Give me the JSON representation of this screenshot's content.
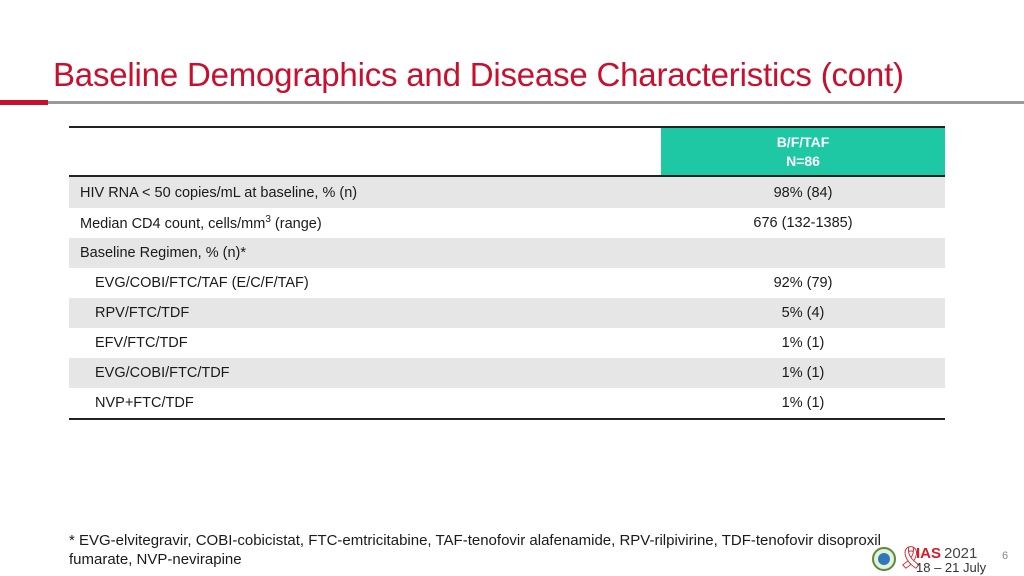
{
  "slide": {
    "title": "Baseline Demographics and Disease Characteristics (cont)",
    "page_number": "6"
  },
  "table": {
    "header": {
      "group": "B/F/TAF",
      "n": "N=86"
    },
    "rows": [
      {
        "label_main": "HIV RNA < 50 copies/mL at baseline, % (n)",
        "value": "98% (84)"
      },
      {
        "label_main": "Median CD4 count, cells/mm",
        "label_sup": "3",
        "label_rest": " (range)",
        "value": "676 (132-1385)"
      },
      {
        "label_main": "Baseline Regimen, % (n)*",
        "value": ""
      },
      {
        "label_main": "EVG/COBI/FTC/TAF (E/C/F/TAF)",
        "value": "92% (79)"
      },
      {
        "label_main": "RPV/FTC/TDF",
        "value": "5% (4)"
      },
      {
        "label_main": "EFV/FTC/TDF",
        "value": "1% (1)"
      },
      {
        "label_main": "EVG/COBI/FTC/TDF",
        "value": "1% (1)"
      },
      {
        "label_main": "NVP+FTC/TDF",
        "value": "1% (1)"
      }
    ]
  },
  "footnote": "* EVG-elvitegravir, COBI-cobicistat, FTC-emtricitabine, TAF-tenofovir alafenamide, RPV-rilpivirine, TDF-tenofovir disoproxil fumarate, NVP-nevirapine",
  "logo": {
    "name": "IAS",
    "year": "2021",
    "dates": "18 – 21 July",
    "icon": "ribbon-icon"
  },
  "colors": {
    "title_red": "#c8102e",
    "header_teal": "#1ec8a5",
    "row_shade": "#e6e6e6"
  }
}
